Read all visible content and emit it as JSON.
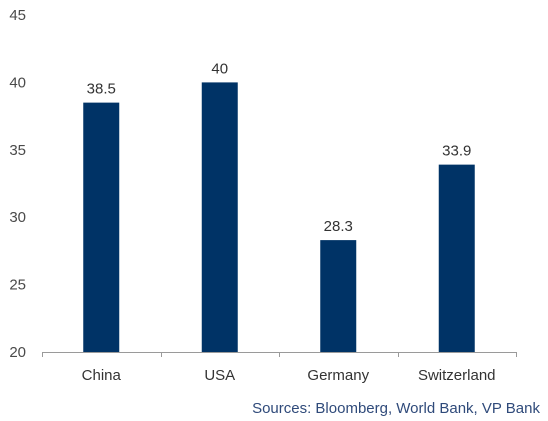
{
  "chart_data": {
    "type": "bar",
    "categories": [
      "China",
      "USA",
      "Germany",
      "Switzerland"
    ],
    "values": [
      38.5,
      40,
      28.3,
      33.9
    ],
    "value_labels": [
      "38.5",
      "40",
      "28.3",
      "33.9"
    ],
    "ylim": [
      20,
      45
    ],
    "yticks": [
      20,
      25,
      30,
      35,
      40,
      45
    ],
    "ytick_labels": [
      "20",
      "25",
      "30",
      "35",
      "40",
      "45"
    ],
    "grid": false,
    "bar_color": "#003366",
    "axis_color": "#9a9a9a",
    "source": "Sources: Bloomberg, World Bank, VP Bank"
  }
}
